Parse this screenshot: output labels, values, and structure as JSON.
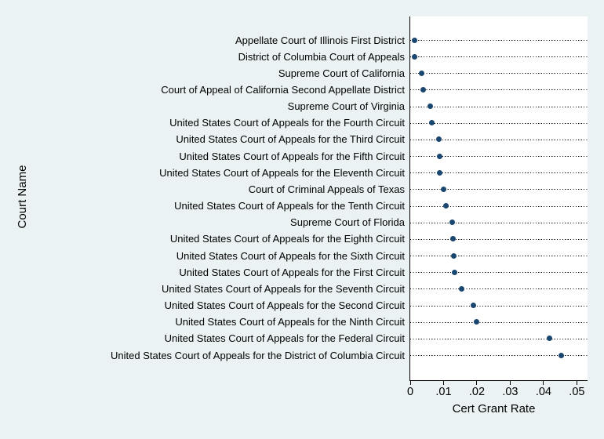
{
  "chart_data": {
    "type": "scatter",
    "subtype": "horizontal-dot-plot",
    "title": "",
    "xlabel": "Cert Grant Rate",
    "ylabel": "Court Name",
    "xlim": [
      0,
      0.0532
    ],
    "xticks": [
      0,
      0.01,
      0.02,
      0.03,
      0.04,
      0.05
    ],
    "xtick_labels": [
      "0",
      ".01",
      ".02",
      ".03",
      ".04",
      ".05"
    ],
    "grid": "dotted horizontal leader line per category",
    "legend": "none",
    "categories": [
      "Appellate Court of Illinois First District",
      "District of Columbia Court of Appeals",
      "Supreme Court of California",
      "Court of Appeal of California Second Appellate District",
      "Supreme Court of Virginia",
      "United States Court of Appeals for the Fourth Circuit",
      "United States Court of Appeals for the Third Circuit",
      "United States Court of Appeals for the Fifth Circuit",
      "United States Court of Appeals for the Eleventh Circuit",
      "Court of Criminal Appeals of Texas",
      "United States Court of Appeals for the Tenth Circuit",
      "Supreme Court of Florida",
      "United States Court of Appeals for the Eighth Circuit",
      "United States Court of Appeals for the Sixth Circuit",
      "United States Court of Appeals for the First Circuit",
      "United States Court of Appeals for the Seventh Circuit",
      "United States Court of Appeals for the Second Circuit",
      "United States Court of Appeals for the Ninth Circuit",
      "United States Court of Appeals for the Federal Circuit",
      "United States Court of Appeals for the District of Columbia Circuit"
    ],
    "values": [
      0.0012,
      0.0014,
      0.0035,
      0.0039,
      0.006,
      0.0065,
      0.0087,
      0.0088,
      0.0089,
      0.0101,
      0.0107,
      0.0127,
      0.0128,
      0.013,
      0.0133,
      0.0154,
      0.0189,
      0.02,
      0.0418,
      0.0454
    ],
    "marker_color": "#1a476f",
    "background_color": "#eaf2f3",
    "plot_background": "#ffffff",
    "axis_color": "#000000",
    "text_color": "#000000"
  }
}
